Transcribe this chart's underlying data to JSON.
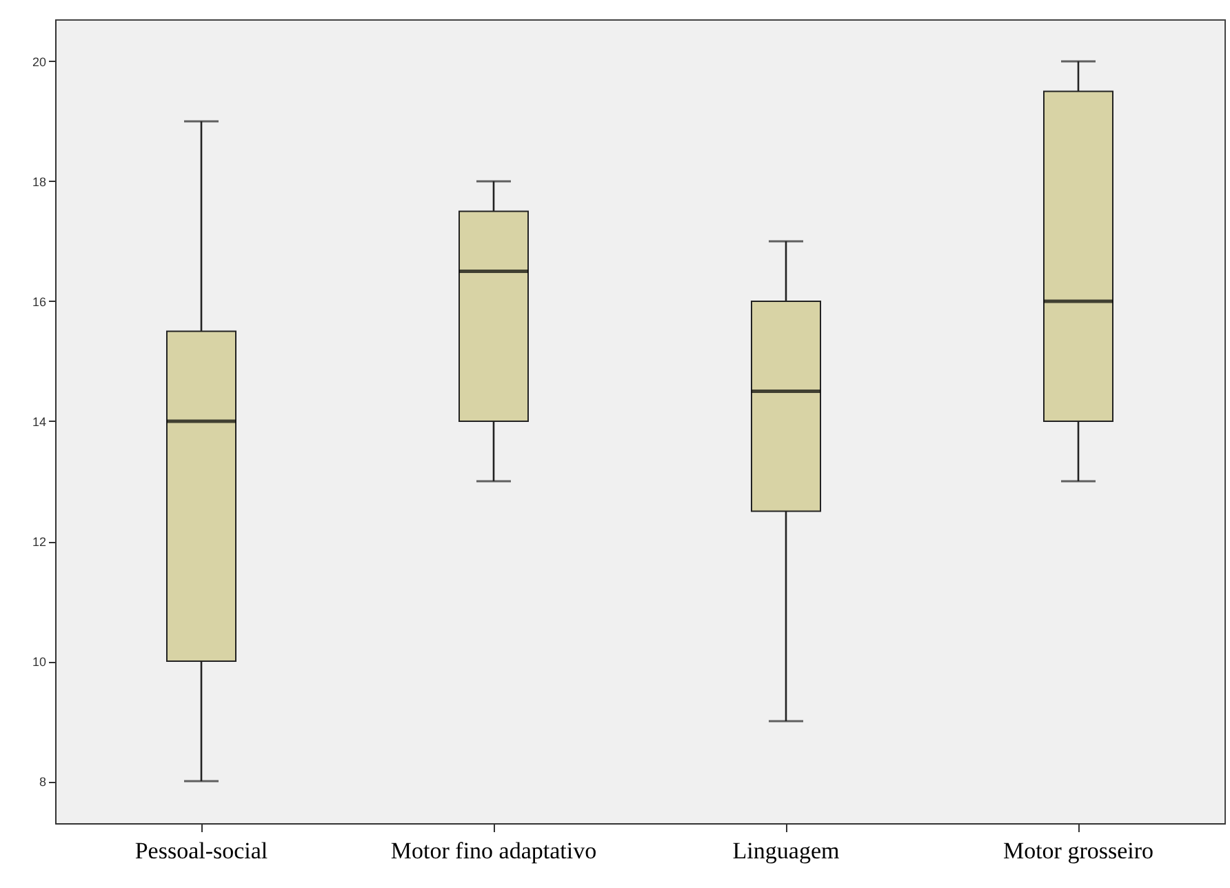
{
  "chart_data": {
    "type": "box",
    "categories": [
      "Pessoal-social",
      "Motor fino adaptativo",
      "Linguagem",
      "Motor grosseiro"
    ],
    "boxes": [
      {
        "low": 8,
        "q1": 10,
        "median": 14,
        "q3": 15.5,
        "high": 19
      },
      {
        "low": 13,
        "q1": 14,
        "median": 16.5,
        "q3": 17.5,
        "high": 18
      },
      {
        "low": 9,
        "q1": 12.5,
        "median": 14.5,
        "q3": 16,
        "high": 17
      },
      {
        "low": 13,
        "q1": 14,
        "median": 16,
        "q3": 19.5,
        "high": 20
      }
    ],
    "color": "#d8d3a5",
    "ylim": [
      7.3,
      20.7
    ],
    "yticks": [
      8,
      10,
      12,
      14,
      16,
      18,
      20
    ]
  }
}
